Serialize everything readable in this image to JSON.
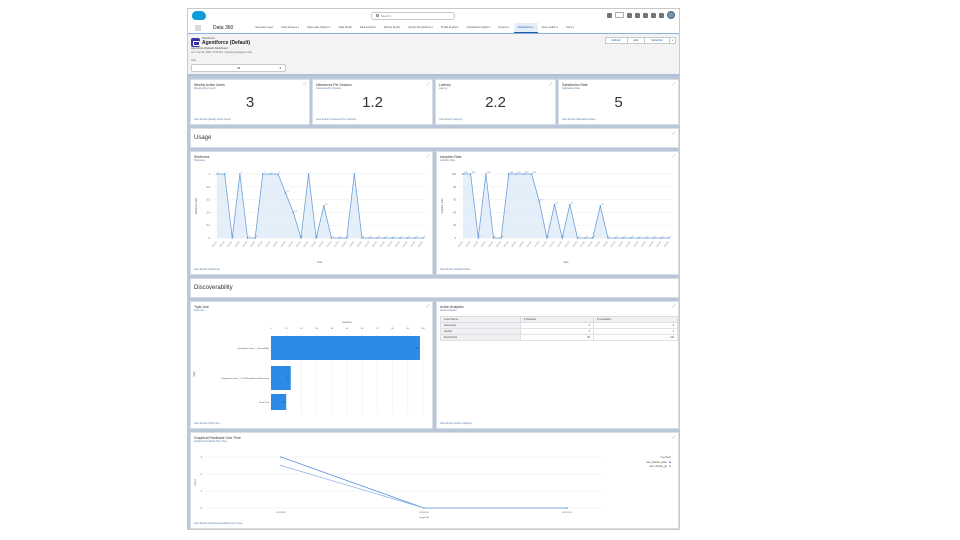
{
  "global_header": {
    "search_placeholder": "Search...",
    "icons": [
      "favorites-icon",
      "setup-assist-icon",
      "help-icon",
      "gear-icon",
      "notifications-icon",
      "avatar"
    ]
  },
  "nav": {
    "app_name": "Data 360",
    "items": [
      {
        "label": "Semantic Layer",
        "dropdown": false,
        "active": false
      },
      {
        "label": "Data Streams",
        "dropdown": true,
        "active": false
      },
      {
        "label": "Data Lake Objects",
        "dropdown": true,
        "active": false
      },
      {
        "label": "Data Model",
        "dropdown": false,
        "active": false
      },
      {
        "label": "Data Explorer",
        "dropdown": false,
        "active": false
      },
      {
        "label": "Identity Studio",
        "dropdown": false,
        "active": false
      },
      {
        "label": "Identity Resolutions",
        "dropdown": true,
        "active": false
      },
      {
        "label": "Profile Explorer",
        "dropdown": false,
        "active": false
      },
      {
        "label": "Calculated Insights",
        "dropdown": true,
        "active": false
      },
      {
        "label": "Reports",
        "dropdown": true,
        "active": false
      },
      {
        "label": "Dashboards",
        "dropdown": true,
        "active": true
      },
      {
        "label": "Query Editor",
        "dropdown": true,
        "active": false
      },
      {
        "label": "More",
        "dropdown": true,
        "active": false
      }
    ]
  },
  "page_header": {
    "object_type": "Dashboard",
    "title": "Agentforce (Default)",
    "subtitle": "Agentforce (Default) Dashboard",
    "meta": "As of Jun 24, 2025, 10:52 AM · Viewing as Engineer User",
    "view_label": "View",
    "view_value": "All",
    "buttons": [
      "Refresh",
      "Edit",
      "Subscribe",
      "▾"
    ]
  },
  "metrics": [
    {
      "title": "Weekly Active Users",
      "subtitle": "Weekly Active Users",
      "value": "3",
      "link": "View Report (Weekly Active Users)"
    },
    {
      "title": "Utterances Per Session",
      "subtitle": "Utterances Per Session",
      "value": "1.2",
      "link": "View Report (Utterances Per Session)"
    },
    {
      "title": "Latency",
      "subtitle": "Latency",
      "value": "2.2",
      "link": "View Report (Latency)"
    },
    {
      "title": "Satisfaction Rate",
      "subtitle": "Satisfaction Rate",
      "value": "5",
      "link": "View Report (Satisfaction Rate)"
    }
  ],
  "sections": {
    "usage": "Usage",
    "discoverability": "Discoverability"
  },
  "charts": {
    "stickiness": {
      "title": "Stickiness",
      "subtitle": "Stickiness",
      "link": "View Report (Stickiness)"
    },
    "adoption": {
      "title": "Adoption Rate",
      "subtitle": "Adoption Rate",
      "link": "View Report (Adoption Rate)"
    },
    "topic_use": {
      "title": "Topic Use",
      "subtitle": "Topic Use",
      "link": "View Report (Topic Use)"
    },
    "feedback": {
      "title": "Graphical Feedback Over Time",
      "subtitle": "Graphical Feedback Over Time",
      "link": "View Report (Graphical Feedback Over Time)"
    }
  },
  "action_stats": {
    "title": "Action Analytics",
    "subtitle": "Action Analytics",
    "link": "View Report (Action Analytics)",
    "columns": [
      "Action Name ↑",
      "Σ Sessions",
      "Σ Invocations"
    ],
    "rows": [
      {
        "name": "Summarize",
        "sessions": "3",
        "invocations": "3"
      },
      {
        "name": "Identify",
        "sessions": "4",
        "invocations": "4"
      },
      {
        "name": "Find Articles",
        "sessions": "95",
        "invocations": "110"
      }
    ]
  },
  "chart_data": [
    {
      "type": "area",
      "title": "Stickiness",
      "xlabel": "Date",
      "ylabel": "Stickiness Rate",
      "ylim": [
        0,
        1
      ],
      "yticks": [
        0,
        0.2,
        0.4,
        0.6,
        0.8,
        1
      ],
      "x_count": 28,
      "values": [
        1,
        1,
        0,
        1,
        0,
        0,
        1,
        1,
        1,
        0.7,
        0.4,
        0,
        1,
        0,
        0.5,
        0,
        0,
        0,
        1,
        0,
        0,
        0,
        0,
        0,
        0,
        0,
        0,
        0
      ],
      "grid": true
    },
    {
      "type": "area",
      "title": "Adoption Rate",
      "xlabel": "Date",
      "ylabel": "Adoption Rate",
      "ylim": [
        0,
        100
      ],
      "yticks": [
        0,
        20,
        40,
        60,
        80,
        100
      ],
      "x_count": 28,
      "values": [
        100,
        100,
        0,
        100,
        0,
        0,
        100,
        100,
        100,
        100,
        57,
        0,
        52,
        0,
        52,
        0,
        0,
        0,
        50,
        0,
        0,
        0,
        0,
        0,
        0,
        0,
        0,
        0
      ],
      "grid": true
    },
    {
      "type": "bar",
      "orientation": "horizontal",
      "title": "Topic Use",
      "xlabel": "Sessions",
      "ylabel": "Topic",
      "xlim": [
        0,
        100
      ],
      "xticks": [
        0,
        10,
        20,
        30,
        40,
        50,
        60,
        70,
        80,
        90,
        100
      ],
      "categories": [
        "EmployeeCopilot__GeneralFAQ",
        "EmployeeCopilot__OOTBSingleRecordSummary",
        "Small Talk"
      ],
      "values": [
        98,
        13,
        10
      ],
      "grid": true
    },
    {
      "type": "line",
      "title": "Graphical Feedback Over Time",
      "xlabel": "Logged At",
      "ylabel": "Count",
      "ylim": [
        0,
        3
      ],
      "yticks": [
        0,
        1,
        2,
        3
      ],
      "categories": [
        "6/19/2025",
        "6/20/2025",
        "6/21/2025"
      ],
      "series": [
        {
          "name": "user_thumbs_down",
          "values": [
            3,
            0,
            0
          ]
        },
        {
          "name": "user_thumbs_up",
          "values": [
            2.5,
            0,
            null
          ]
        }
      ],
      "legend_title": "Feedback",
      "legend_position": "right"
    }
  ]
}
